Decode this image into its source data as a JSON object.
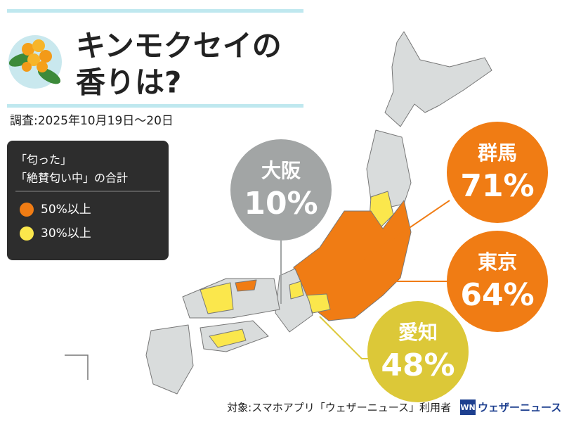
{
  "header": {
    "title_lines": [
      "キンモクセイの",
      "香りは?"
    ],
    "survey_date": "調査:2025年10月19日〜20日"
  },
  "legend": {
    "heading_lines": [
      "「匂った」",
      "「絶賛匂い中」の合計"
    ],
    "items": [
      {
        "label": "50%以上",
        "color": "#f07c14"
      },
      {
        "label": "30%以上",
        "color": "#fbe74c"
      }
    ]
  },
  "callouts": [
    {
      "prefecture": "大阪",
      "value": "10%",
      "color": "#a2a5a5"
    },
    {
      "prefecture": "群馬",
      "value": "71%",
      "color": "#f07c14"
    },
    {
      "prefecture": "東京",
      "value": "64%",
      "color": "#f07c14"
    },
    {
      "prefecture": "愛知",
      "value": "48%",
      "color": "#dcc838"
    }
  ],
  "footer": {
    "target": "対象:スマホアプリ「ウェザーニュース」利用者",
    "brand": "ウェザーニュース"
  }
}
